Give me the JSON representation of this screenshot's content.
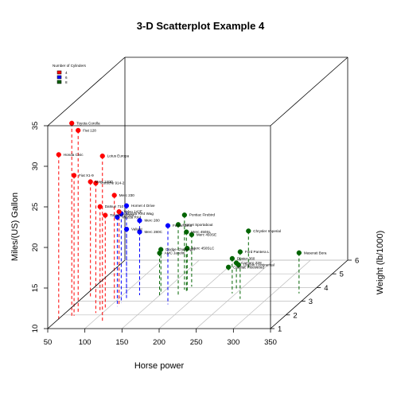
{
  "chart_data": {
    "type": "scatter",
    "subtype": "3d-scatter",
    "title": "3-D Scatterplot Example 4",
    "xlabel": "Horse power",
    "ylabel": "Miles/(US) Gallon",
    "zlabel": "Weight (lb/1000)",
    "xlim": [
      50,
      350
    ],
    "ylim": [
      10,
      35
    ],
    "zlim": [
      1,
      6
    ],
    "x_ticks": [
      50,
      100,
      150,
      200,
      250,
      300,
      350
    ],
    "y_ticks": [
      10,
      15,
      20,
      25,
      30,
      35
    ],
    "z_ticks": [
      1,
      2,
      3,
      4,
      5,
      6
    ],
    "grid": true,
    "drop_lines": true,
    "legend": {
      "title": "Number of Cylinders",
      "position": "top-left",
      "entries": [
        {
          "label": "4",
          "color": "#ff0000"
        },
        {
          "label": "6",
          "color": "#0000ff"
        },
        {
          "label": "8",
          "color": "#006400"
        }
      ]
    },
    "colors": {
      "4": "#ff0000",
      "6": "#0000ff",
      "8": "#006400"
    },
    "points": [
      {
        "label": "Mazda RX4",
        "hp": 110,
        "mpg": 21.0,
        "wt": 2.62,
        "cyl": "6"
      },
      {
        "label": "Mazda RX4 Wag",
        "hp": 110,
        "mpg": 21.0,
        "wt": 2.875,
        "cyl": "6"
      },
      {
        "label": "Datsun 710",
        "hp": 93,
        "mpg": 22.8,
        "wt": 2.32,
        "cyl": "4"
      },
      {
        "label": "Hornet 4 Drive",
        "hp": 110,
        "mpg": 21.4,
        "wt": 3.215,
        "cyl": "6"
      },
      {
        "label": "Hornet Sportabout",
        "hp": 175,
        "mpg": 18.7,
        "wt": 3.44,
        "cyl": "8"
      },
      {
        "label": "Valiant",
        "hp": 105,
        "mpg": 18.1,
        "wt": 3.46,
        "cyl": "6"
      },
      {
        "label": "Duster 360",
        "hp": 245,
        "mpg": 14.3,
        "wt": 3.57,
        "cyl": "8"
      },
      {
        "label": "Merc 240D",
        "hp": 62,
        "mpg": 24.4,
        "wt": 3.19,
        "cyl": "4"
      },
      {
        "label": "Merc 230",
        "hp": 95,
        "mpg": 22.8,
        "wt": 3.15,
        "cyl": "4"
      },
      {
        "label": "Merc 280",
        "hp": 123,
        "mpg": 19.2,
        "wt": 3.44,
        "cyl": "6"
      },
      {
        "label": "Merc 280C",
        "hp": 123,
        "mpg": 17.8,
        "wt": 3.44,
        "cyl": "6"
      },
      {
        "label": "Merc 450SE",
        "hp": 180,
        "mpg": 16.4,
        "wt": 4.07,
        "cyl": "8"
      },
      {
        "label": "Merc 450SL",
        "hp": 180,
        "mpg": 17.3,
        "wt": 3.73,
        "cyl": "8"
      },
      {
        "label": "Merc 450SLC",
        "hp": 180,
        "mpg": 15.2,
        "wt": 3.78,
        "cyl": "8"
      },
      {
        "label": "Cadillac Fleetwood",
        "hp": 205,
        "mpg": 10.4,
        "wt": 5.25,
        "cyl": "8"
      },
      {
        "label": "Lincoln Continental",
        "hp": 215,
        "mpg": 10.4,
        "wt": 5.424,
        "cyl": "8"
      },
      {
        "label": "Chrysler Imperial",
        "hp": 230,
        "mpg": 14.7,
        "wt": 5.345,
        "cyl": "8"
      },
      {
        "label": "Fiat 128",
        "hp": 66,
        "mpg": 32.4,
        "wt": 2.2,
        "cyl": "4"
      },
      {
        "label": "Honda Civic",
        "hp": 52,
        "mpg": 30.4,
        "wt": 1.615,
        "cyl": "4"
      },
      {
        "label": "Toyota Corolla",
        "hp": 65,
        "mpg": 33.9,
        "wt": 1.835,
        "cyl": "4"
      },
      {
        "label": "Toyota Corona",
        "hp": 97,
        "mpg": 21.5,
        "wt": 2.465,
        "cyl": "4"
      },
      {
        "label": "Dodge Challenger",
        "hp": 150,
        "mpg": 15.5,
        "wt": 3.52,
        "cyl": "8"
      },
      {
        "label": "AMC Javelin",
        "hp": 150,
        "mpg": 15.2,
        "wt": 3.435,
        "cyl": "8"
      },
      {
        "label": "Camaro Z28",
        "hp": 245,
        "mpg": 13.3,
        "wt": 3.84,
        "cyl": "8"
      },
      {
        "label": "Pontiac Firebird",
        "hp": 175,
        "mpg": 19.2,
        "wt": 3.845,
        "cyl": "8"
      },
      {
        "label": "Fiat X1-9",
        "hp": 66,
        "mpg": 27.3,
        "wt": 1.935,
        "cyl": "4"
      },
      {
        "label": "Porsche 914-2",
        "hp": 91,
        "mpg": 26.0,
        "wt": 2.14,
        "cyl": "4"
      },
      {
        "label": "Lotus Europa",
        "hp": 113,
        "mpg": 30.4,
        "wt": 1.513,
        "cyl": "4"
      },
      {
        "label": "Ford Pantera L",
        "hp": 264,
        "mpg": 15.8,
        "wt": 3.17,
        "cyl": "8"
      },
      {
        "label": "Ferrari Dino",
        "hp": 175,
        "mpg": 19.7,
        "wt": 2.77,
        "cyl": "6"
      },
      {
        "label": "Maserati Bora",
        "hp": 335,
        "mpg": 15.0,
        "wt": 3.57,
        "cyl": "8"
      },
      {
        "label": "Volvo 142E",
        "hp": 109,
        "mpg": 21.4,
        "wt": 2.78,
        "cyl": "4"
      }
    ]
  }
}
